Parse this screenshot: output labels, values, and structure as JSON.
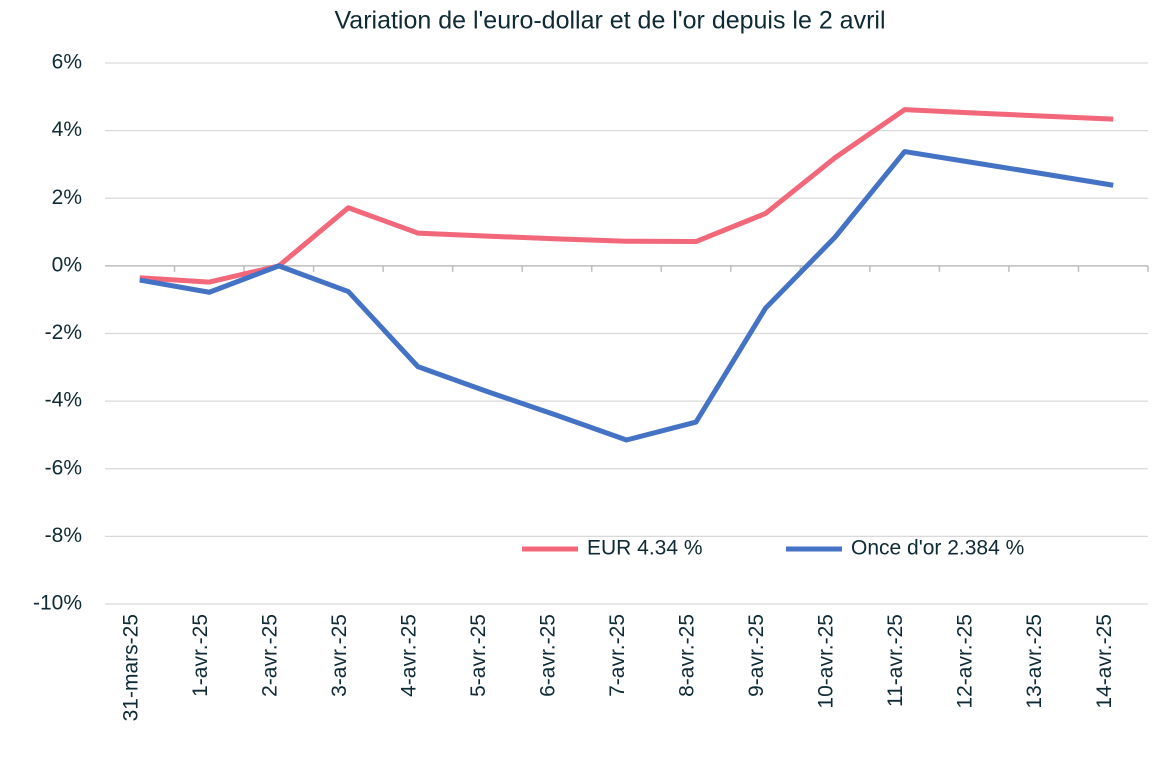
{
  "chart_data": {
    "type": "line",
    "title": "Variation de l'euro-dollar et de l'or depuis le 2 avril",
    "categories": [
      "31-mars-25",
      "1-avr.-25",
      "2-avr.-25",
      "3-avr.-25",
      "4-avr.-25",
      "5-avr.-25",
      "6-avr.-25",
      "7-avr.-25",
      "8-avr.-25",
      "9-avr.-25",
      "10-avr.-25",
      "11-avr.-25",
      "12-avr.-25",
      "13-avr.-25",
      "14-avr.-25"
    ],
    "series": [
      {
        "name": "EUR 4.34 %",
        "color": "#f2677a",
        "values": [
          -0.35,
          -0.48,
          0,
          1.72,
          0.97,
          0.88,
          0.8,
          0.73,
          0.72,
          1.55,
          3.2,
          4.62,
          4.52,
          4.43,
          4.34
        ]
      },
      {
        "name": "Once d'or 2.384 %",
        "color": "#4472c4",
        "values": [
          -0.42,
          -0.78,
          0,
          -0.76,
          -2.98,
          -3.72,
          -4.42,
          -5.15,
          -4.62,
          -1.25,
          0.85,
          3.38,
          3.05,
          2.72,
          2.384
        ]
      }
    ],
    "ylim": [
      -10,
      6
    ],
    "yticks": [
      {
        "value": -10,
        "label": "-10%"
      },
      {
        "value": -8,
        "label": "-8%"
      },
      {
        "value": -6,
        "label": "-6%"
      },
      {
        "value": -4,
        "label": "-4%"
      },
      {
        "value": -2,
        "label": "-2%"
      },
      {
        "value": 0,
        "label": "0%"
      },
      {
        "value": 2,
        "label": "2%"
      },
      {
        "value": 4,
        "label": "4%"
      },
      {
        "value": 6,
        "label": "6%"
      }
    ],
    "grid": true,
    "legend": "bottom-right"
  }
}
